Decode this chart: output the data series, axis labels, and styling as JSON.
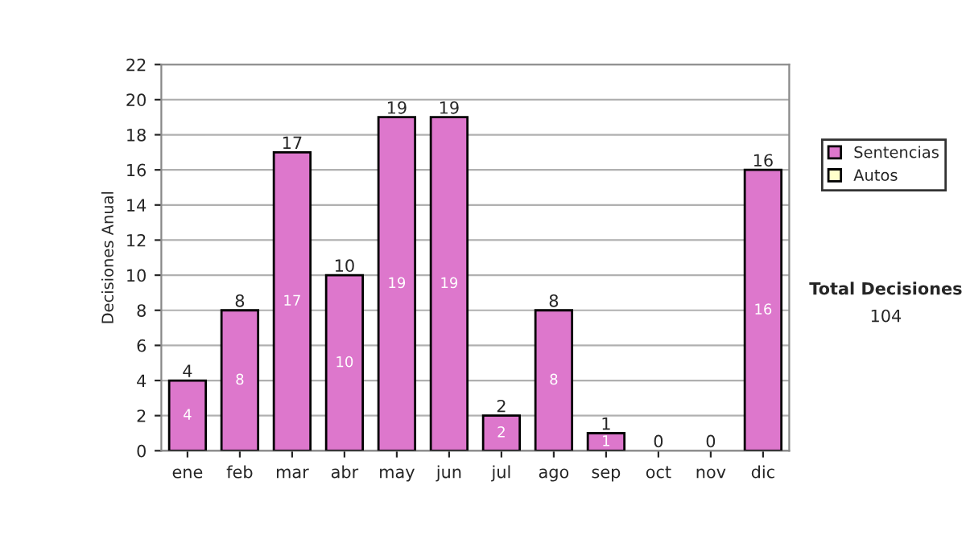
{
  "chart_data": {
    "type": "bar",
    "stacked": true,
    "categories": [
      "ene",
      "feb",
      "mar",
      "abr",
      "may",
      "jun",
      "jul",
      "ago",
      "sep",
      "oct",
      "nov",
      "dic"
    ],
    "series": [
      {
        "name": "Sentencias",
        "color": "#dd77cc",
        "values": [
          4,
          8,
          17,
          10,
          19,
          19,
          2,
          8,
          1,
          0,
          0,
          16
        ],
        "value_labels": [
          "4",
          "8",
          "17",
          "10",
          "19",
          "19",
          "2",
          "8",
          "1",
          null,
          null,
          "16"
        ]
      },
      {
        "name": "Autos",
        "color": "#ffffcc",
        "values": [
          0,
          0,
          0,
          0,
          0,
          0,
          0,
          0,
          0,
          0,
          0,
          0
        ]
      }
    ],
    "totals": [
      "4",
      "8",
      "17",
      "10",
      "19",
      "19",
      "2",
      "8",
      "1",
      "0",
      "0",
      "16"
    ],
    "ylabel": "Decisiones Anual",
    "ylim": [
      0,
      22
    ],
    "yticks": [
      0,
      2,
      4,
      6,
      8,
      10,
      12,
      14,
      16,
      18,
      20,
      22
    ],
    "grid": "y",
    "legend": "right",
    "annotations": [
      "Total Decisiones",
      "104"
    ]
  }
}
